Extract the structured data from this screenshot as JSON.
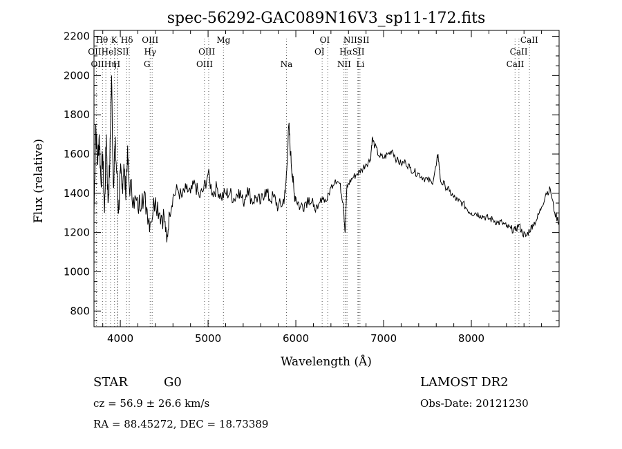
{
  "chart_data": {
    "type": "line",
    "title": "spec-56292-GAC089N16V3_sp11-172.fits",
    "xlabel": "Wavelength (Å)",
    "ylabel": "Flux (relative)",
    "xlim": [
      3700,
      9000
    ],
    "ylim": [
      720,
      2230
    ],
    "xticks": [
      4000,
      5000,
      6000,
      7000,
      8000
    ],
    "yticks": [
      800,
      1000,
      1200,
      1400,
      1600,
      1800,
      2000,
      2200
    ],
    "grid": false,
    "series": [
      {
        "x": [
          3700,
          3720,
          3740,
          3760,
          3780,
          3800,
          3820,
          3840,
          3860,
          3880,
          3900,
          3920,
          3940,
          3960,
          3980,
          4000,
          4020,
          4040,
          4060,
          4080,
          4100,
          4150,
          4200,
          4250,
          4300,
          4340,
          4400,
          4450,
          4500,
          4530,
          4560,
          4600,
          4650,
          4700,
          4750,
          4800,
          4850,
          4900,
          4950,
          5000,
          5050,
          5100,
          5150,
          5200,
          5250,
          5300,
          5350,
          5400,
          5450,
          5500,
          5550,
          5600,
          5650,
          5700,
          5750,
          5800,
          5850,
          5880,
          5900,
          5920,
          5940,
          5960,
          5980,
          6000,
          6050,
          6100,
          6150,
          6200,
          6250,
          6300,
          6350,
          6400,
          6450,
          6500,
          6540,
          6562,
          6580,
          6600,
          6650,
          6700,
          6750,
          6800,
          6850,
          6870,
          6900,
          6950,
          7000,
          7050,
          7100,
          7150,
          7200,
          7250,
          7300,
          7350,
          7400,
          7450,
          7500,
          7550,
          7600,
          7620,
          7650,
          7700,
          7750,
          7800,
          7850,
          7900,
          7950,
          8000,
          8050,
          8100,
          8150,
          8200,
          8250,
          8300,
          8350,
          8400,
          8450,
          8500,
          8540,
          8580,
          8620,
          8662,
          8700,
          8750,
          8800,
          8850,
          8900,
          8950,
          9000
        ],
        "y": [
          1300,
          1750,
          1550,
          1700,
          1450,
          1600,
          1300,
          1700,
          1350,
          1550,
          2000,
          1450,
          1650,
          1500,
          1300,
          1500,
          1420,
          1550,
          1400,
          1600,
          1450,
          1380,
          1320,
          1400,
          1330,
          1250,
          1380,
          1300,
          1280,
          1150,
          1300,
          1380,
          1420,
          1380,
          1420,
          1400,
          1450,
          1380,
          1420,
          1500,
          1400,
          1430,
          1380,
          1400,
          1400,
          1370,
          1420,
          1350,
          1430,
          1360,
          1380,
          1350,
          1420,
          1370,
          1380,
          1330,
          1350,
          1400,
          1550,
          1750,
          1600,
          1500,
          1400,
          1380,
          1330,
          1350,
          1380,
          1330,
          1320,
          1380,
          1360,
          1430,
          1470,
          1450,
          1350,
          1200,
          1420,
          1450,
          1480,
          1500,
          1520,
          1550,
          1570,
          1680,
          1640,
          1590,
          1580,
          1600,
          1620,
          1570,
          1550,
          1560,
          1530,
          1510,
          1500,
          1480,
          1470,
          1450,
          1540,
          1600,
          1460,
          1440,
          1410,
          1380,
          1360,
          1350,
          1320,
          1300,
          1300,
          1290,
          1280,
          1270,
          1265,
          1250,
          1250,
          1230,
          1220,
          1210,
          1240,
          1200,
          1180,
          1210,
          1240,
          1270,
          1330,
          1400,
          1420,
          1300,
          1250
        ]
      }
    ],
    "lines": {
      "top": [
        {
          "x": 3797,
          "label": "Hθ"
        },
        {
          "x": 3835,
          "label": "Hη"
        },
        {
          "x": 3889,
          "label": "HeI"
        },
        {
          "x": 3934,
          "label": "K"
        },
        {
          "x": 3968,
          "label": "H"
        },
        {
          "x": 4072,
          "label": "SII"
        },
        {
          "x": 4102,
          "label": "Hδ"
        },
        {
          "x": 4340,
          "label": "Hγ"
        },
        {
          "x": 4363,
          "label": "OIII"
        },
        {
          "x": 4959,
          "label": "OIII"
        },
        {
          "x": 5007,
          "label": "OIII"
        },
        {
          "x": 5175,
          "label": "Mg"
        },
        {
          "x": 5893,
          "label": "Na"
        },
        {
          "x": 6300,
          "label": "OI"
        },
        {
          "x": 6364,
          "label": "OI"
        },
        {
          "x": 6548,
          "label": "NII"
        },
        {
          "x": 6563,
          "label": "Hα"
        },
        {
          "x": 6583,
          "label": "NII"
        },
        {
          "x": 6707,
          "label": "Li"
        },
        {
          "x": 6716,
          "label": "SII"
        },
        {
          "x": 6731,
          "label": "SII"
        },
        {
          "x": 8498,
          "label": "CaII"
        },
        {
          "x": 8542,
          "label": "CaII"
        },
        {
          "x": 8662,
          "label": "CaII"
        }
      ],
      "bottom": [
        {
          "x": 3727,
          "label": "OII"
        },
        {
          "x": 3970,
          "label": "Hε"
        }
      ]
    },
    "line_labels": [
      {
        "text": "Hθ",
        "row": 0,
        "x": 3790
      },
      {
        "text": "K",
        "row": 0,
        "x": 3930
      },
      {
        "text": "Hδ",
        "row": 0,
        "x": 4075
      },
      {
        "text": "OIII",
        "row": 0,
        "x": 4340
      },
      {
        "text": "Mg",
        "row": 0,
        "x": 5175
      },
      {
        "text": "OI",
        "row": 0,
        "x": 6330
      },
      {
        "text": "NIISII",
        "row": 0,
        "x": 6690
      },
      {
        "text": "CaII",
        "row": 0,
        "x": 8660
      },
      {
        "text": "OIIHeISII",
        "row": 1,
        "x": 3865
      },
      {
        "text": "Hγ",
        "row": 1,
        "x": 4340
      },
      {
        "text": "OIII",
        "row": 1,
        "x": 4985
      },
      {
        "text": "OI",
        "row": 1,
        "x": 6270
      },
      {
        "text": "HαSII",
        "row": 1,
        "x": 6640
      },
      {
        "text": "CaII",
        "row": 1,
        "x": 8540
      },
      {
        "text": "OIIHη",
        "row": 2,
        "x": 3810
      },
      {
        "text": "H",
        "row": 2,
        "x": 3960
      },
      {
        "text": "G",
        "row": 2,
        "x": 4305
      },
      {
        "text": "OIII",
        "row": 2,
        "x": 4960
      },
      {
        "text": "Na",
        "row": 2,
        "x": 5893
      },
      {
        "text": "NII",
        "row": 2,
        "x": 6550
      },
      {
        "text": "Li",
        "row": 2,
        "x": 6735
      },
      {
        "text": "CaII",
        "row": 2,
        "x": 8500
      }
    ]
  },
  "info": {
    "object": "STAR",
    "subclass": "G0",
    "survey": "LAMOST DR2",
    "cz": "cz = 56.9 ± 26.6 km/s",
    "obsdate": "Obs-Date: 20121230",
    "radec": "RA =  88.45272, DEC =  18.73389"
  }
}
